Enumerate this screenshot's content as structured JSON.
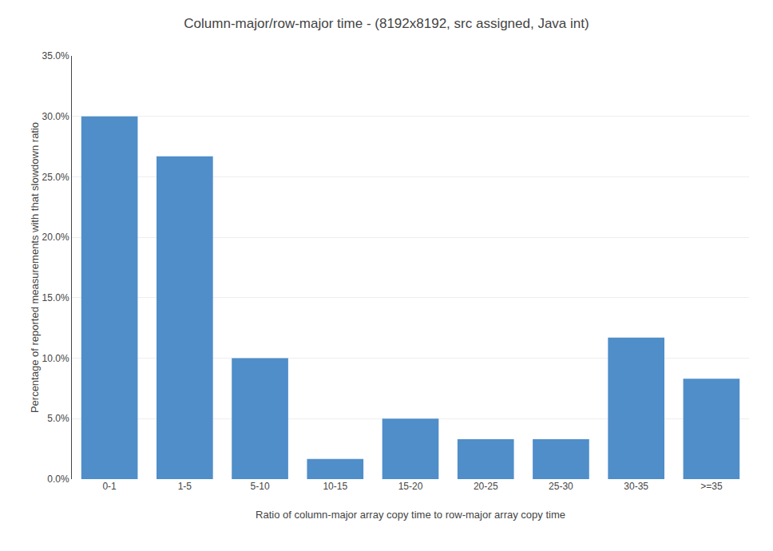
{
  "chart_data": {
    "type": "bar",
    "title": "Column-major/row-major time - (8192x8192, src assigned, Java int)",
    "xlabel": "Ratio of column-major array copy time to row-major array copy time",
    "ylabel": "Percentage of reported measurements with that slowdown ratio",
    "categories": [
      "0-1",
      "1-5",
      "5-10",
      "10-15",
      "15-20",
      "20-25",
      "25-30",
      "30-35",
      ">=35"
    ],
    "values": [
      0.3,
      0.267,
      0.1,
      0.0167,
      0.05,
      0.033,
      0.033,
      0.117,
      0.083
    ],
    "color": "#4f8ec9",
    "ylim": [
      0.0,
      0.35
    ],
    "yticks": [
      {
        "value": 0.0,
        "label": "0.0%"
      },
      {
        "value": 0.05,
        "label": "5.0%"
      },
      {
        "value": 0.1,
        "label": "10.0%"
      },
      {
        "value": 0.15,
        "label": "15.0%"
      },
      {
        "value": 0.2,
        "label": "20.0%"
      },
      {
        "value": 0.25,
        "label": "25.0%"
      },
      {
        "value": 0.3,
        "label": "30.0%"
      },
      {
        "value": 0.35,
        "label": "35.0%"
      }
    ],
    "grid": true
  }
}
